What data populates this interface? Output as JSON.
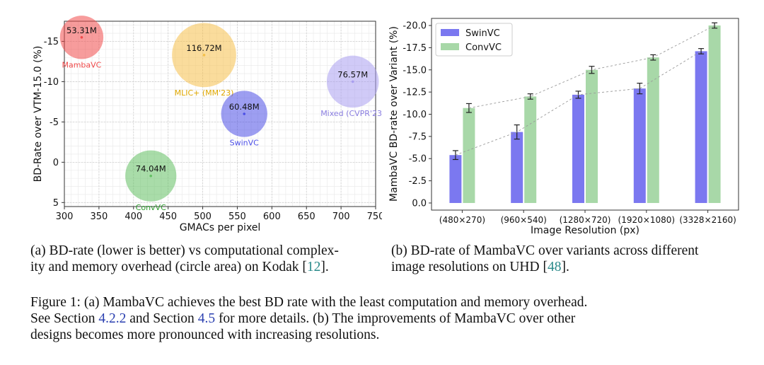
{
  "chart_data": [
    {
      "type": "scatter",
      "xlabel": "GMACs per pixel",
      "ylabel": "BD-Rate over VTM-15.0 (%)",
      "xlim": [
        300,
        750
      ],
      "ylim": [
        5.5,
        -17.5
      ],
      "y_inverted": true,
      "xticks": [
        "300",
        "350",
        "400",
        "450",
        "500",
        "550",
        "600",
        "650",
        "700",
        "750"
      ],
      "yticks": [
        "-15",
        "-10",
        "-5",
        "0",
        "5"
      ],
      "grid": true,
      "series": [
        {
          "name": "MambaVC",
          "x": 325,
          "y": -15.5,
          "size_label": "53.31M",
          "color": "#f04a4a"
        },
        {
          "name": "MLIC+ (MM'23)",
          "x": 502,
          "y": -13.3,
          "size_label": "116.72M",
          "color": "#f5c04a"
        },
        {
          "name": "Mixed (CVPR'23)",
          "x": 717,
          "y": -10.0,
          "size_label": "76.57M",
          "color": "#a99ef0"
        },
        {
          "name": "SwinVC",
          "x": 560,
          "y": -6.0,
          "size_label": "60.48M",
          "color": "#4c4fe6"
        },
        {
          "name": "ConvVC",
          "x": 425,
          "y": 1.7,
          "size_label": "74.04M",
          "color": "#63c063"
        }
      ]
    },
    {
      "type": "bar",
      "xlabel": "Image Resolution (px)",
      "ylabel": "MambaVC BD-rate over Variant (%)",
      "categories": [
        "(480×270)",
        "(960×540)",
        "(1280×720)",
        "(1920×1080)",
        "(3328×2160)"
      ],
      "ylim": [
        0.8,
        -20.8
      ],
      "y_inverted": true,
      "yticks": [
        "0.0",
        "-2.5",
        "-5.0",
        "-7.5",
        "-10.0",
        "-12.5",
        "-15.0",
        "-17.5",
        "-20.0"
      ],
      "legend_position": "top-left",
      "series": [
        {
          "name": "SwinVC",
          "color": "#7b78f0",
          "values": [
            -5.4,
            -8.0,
            -12.2,
            -12.9,
            -17.1
          ],
          "errors": [
            0.5,
            0.8,
            0.4,
            0.6,
            0.3
          ]
        },
        {
          "name": "ConvVC",
          "color": "#a8d8a8",
          "values": [
            -10.7,
            -12.0,
            -15.0,
            -16.4,
            -20.0
          ],
          "errors": [
            0.5,
            0.3,
            0.4,
            0.3,
            0.3
          ]
        }
      ]
    }
  ],
  "captions": {
    "a_line1": "(a) BD-rate (lower is better) vs computational complex-",
    "a_line2_pre": "ity and memory overhead (circle area) on Kodak [",
    "a_ref": "12",
    "a_line2_post": "].",
    "b_line1": "(b) BD-rate of MambaVC over variants across different",
    "b_line2_pre": "image resolutions on UHD [",
    "b_ref": "48",
    "b_line2_post": "].",
    "fig_l1": "Figure 1: (a) MambaVC achieves the best BD rate with the least computation and memory overhead.",
    "fig_l2_a": "See Section ",
    "fig_l2_ref1": "4.2.2",
    "fig_l2_b": " and Section ",
    "fig_l2_ref2": "4.5",
    "fig_l2_c": " for more details. (b) The improvements of MambaVC over other",
    "fig_l3": "designs becomes more pronounced with increasing resolutions."
  }
}
